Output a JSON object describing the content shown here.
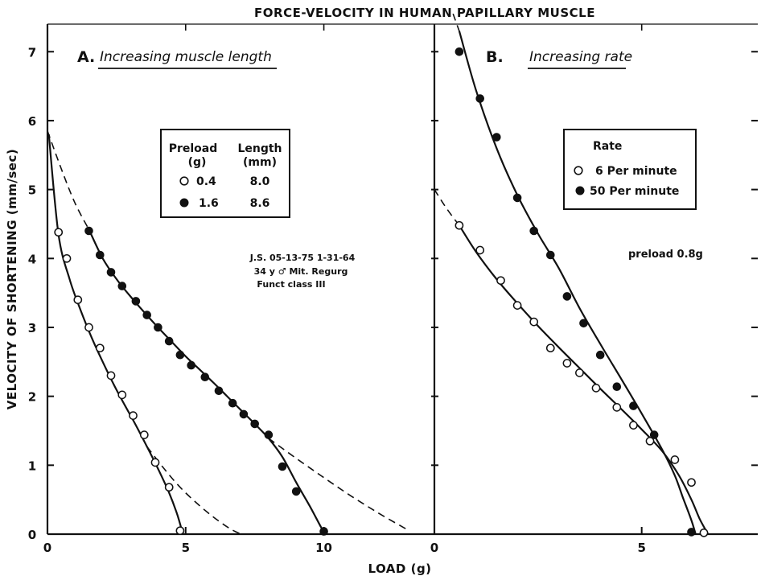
{
  "chart_data": [
    {
      "type": "scatter",
      "title": "FORCE-VELOCITY IN HUMAN PAPILLARY MUSCLE",
      "xlabel": "LOAD (g)",
      "ylabel": "VELOCITY OF SHORTENING (mm/sec)",
      "panel_label": "A.",
      "panel_title": "Increasing muscle length",
      "xlim": [
        0,
        14
      ],
      "ylim": [
        0,
        7.4
      ],
      "x_ticks": [
        "0",
        "5",
        "10"
      ],
      "y_ticks": [
        "0",
        "1",
        "2",
        "3",
        "4",
        "5",
        "6",
        "7"
      ],
      "grid": false,
      "legend": {
        "placement": "upper-center",
        "headers": [
          "Preload",
          "Length"
        ],
        "units": [
          "(g)",
          "(mm)"
        ],
        "rows": [
          {
            "marker": "open",
            "preload": "0.4",
            "length": "8.0"
          },
          {
            "marker": "filled",
            "preload": "1.6",
            "length": "8.6"
          }
        ]
      },
      "annotation": [
        "J.S. 05-13-75  1-31-64",
        "34 y ♂ Mit. Regurg",
        "Funct class III"
      ],
      "series": [
        {
          "marker": "open",
          "x": [
            0.4,
            0.7,
            1.1,
            1.5,
            1.9,
            2.3,
            2.7,
            3.1,
            3.5,
            3.9,
            4.4,
            4.8
          ],
          "y": [
            4.38,
            4.0,
            3.4,
            3.0,
            2.7,
            2.3,
            2.02,
            1.72,
            1.44,
            1.04,
            0.68,
            0.05
          ]
        },
        {
          "marker": "filled",
          "x": [
            1.5,
            1.9,
            2.3,
            2.7,
            3.2,
            3.6,
            4.0,
            4.4,
            4.8,
            5.2,
            5.7,
            6.2,
            6.7,
            7.1,
            7.5,
            8.0,
            8.5,
            9.0,
            10.0
          ],
          "y": [
            4.4,
            4.05,
            3.8,
            3.6,
            3.38,
            3.18,
            3.0,
            2.8,
            2.6,
            2.45,
            2.28,
            2.08,
            1.9,
            1.74,
            1.6,
            1.44,
            0.98,
            0.62,
            0.04
          ]
        }
      ],
      "fitted_curves": [
        {
          "style": "solid",
          "x": [
            0.05,
            0.4,
            0.8,
            1.2,
            1.6,
            2.0,
            2.4,
            2.8,
            3.2,
            3.6,
            4.0,
            4.4,
            4.7,
            4.9
          ],
          "y": [
            5.8,
            4.35,
            3.7,
            3.25,
            2.85,
            2.5,
            2.17,
            1.87,
            1.58,
            1.27,
            0.95,
            0.6,
            0.28,
            0.0
          ]
        },
        {
          "style": "dashed",
          "x": [
            3.6,
            4.2,
            4.8,
            5.4,
            6.0,
            6.6,
            7.0
          ],
          "y": [
            1.27,
            0.96,
            0.68,
            0.45,
            0.25,
            0.08,
            0.0
          ]
        },
        {
          "style": "dashed",
          "x": [
            0.0,
            0.5,
            1.0,
            1.5
          ],
          "y": [
            5.85,
            5.3,
            4.8,
            4.42
          ]
        },
        {
          "style": "solid",
          "x": [
            1.5,
            2.0,
            2.5,
            3.0,
            3.5,
            4.0,
            4.5,
            5.0,
            5.5,
            6.0,
            6.5,
            7.0,
            7.5,
            8.0,
            8.5,
            9.0,
            9.5,
            9.9,
            10.05
          ],
          "y": [
            4.42,
            4.0,
            3.7,
            3.45,
            3.22,
            3.0,
            2.79,
            2.58,
            2.39,
            2.2,
            2.0,
            1.8,
            1.6,
            1.39,
            1.12,
            0.75,
            0.4,
            0.1,
            0.0
          ]
        },
        {
          "style": "dashed",
          "x": [
            8.0,
            9.0,
            10.0,
            11.0,
            12.0,
            13.0
          ],
          "y": [
            1.39,
            1.1,
            0.82,
            0.55,
            0.3,
            0.07
          ]
        }
      ]
    },
    {
      "type": "scatter",
      "xlabel": "LOAD (g)",
      "panel_label": "B.",
      "panel_title": "Increasing rate",
      "xlim": [
        0,
        7.8
      ],
      "ylim": [
        0,
        7.4
      ],
      "x_ticks": [
        "0",
        "5"
      ],
      "grid": false,
      "legend": {
        "placement": "upper-right",
        "header": "Rate",
        "rows": [
          {
            "marker": "open",
            "label": "6 Per minute"
          },
          {
            "marker": "filled",
            "label": "50 Per minute"
          }
        ]
      },
      "annotation": [
        "preload 0.8g"
      ],
      "series": [
        {
          "name": "6 Per minute",
          "marker": "open",
          "x": [
            0.6,
            1.1,
            1.6,
            2.0,
            2.4,
            2.8,
            3.2,
            3.5,
            3.9,
            4.4,
            4.8,
            5.2,
            5.8,
            6.2,
            6.5
          ],
          "y": [
            4.48,
            4.12,
            3.68,
            3.32,
            3.08,
            2.7,
            2.48,
            2.34,
            2.12,
            1.84,
            1.58,
            1.35,
            1.08,
            0.75,
            0.02
          ]
        },
        {
          "name": "50 Per minute",
          "marker": "filled",
          "x": [
            0.6,
            1.1,
            1.5,
            2.0,
            2.4,
            2.8,
            3.2,
            3.6,
            4.0,
            4.4,
            4.8,
            5.3,
            6.2
          ],
          "y": [
            7.0,
            6.32,
            5.76,
            4.88,
            4.4,
            4.05,
            3.45,
            3.06,
            2.6,
            2.14,
            1.86,
            1.44,
            0.03
          ]
        }
      ],
      "fitted_curves": [
        {
          "style": "dashed",
          "x": [
            0.0,
            0.3,
            0.6
          ],
          "y": [
            5.0,
            4.72,
            4.48
          ]
        },
        {
          "style": "solid",
          "x": [
            0.6,
            1.0,
            1.5,
            2.0,
            2.5,
            3.0,
            3.5,
            4.0,
            4.5,
            5.0,
            5.5,
            5.9,
            6.2,
            6.4,
            6.6
          ],
          "y": [
            4.48,
            4.1,
            3.7,
            3.35,
            3.02,
            2.71,
            2.41,
            2.11,
            1.82,
            1.52,
            1.2,
            0.85,
            0.5,
            0.22,
            0.0
          ]
        },
        {
          "style": "dashed",
          "x": [
            0.45,
            0.6
          ],
          "y": [
            7.55,
            7.3
          ]
        },
        {
          "style": "solid",
          "x": [
            0.6,
            1.0,
            1.5,
            2.0,
            2.5,
            3.0,
            3.5,
            4.0,
            4.5,
            5.0,
            5.5,
            5.8,
            6.0,
            6.2,
            6.3
          ],
          "y": [
            7.3,
            6.45,
            5.6,
            4.92,
            4.36,
            3.86,
            3.28,
            2.76,
            2.26,
            1.75,
            1.22,
            0.85,
            0.52,
            0.2,
            0.0
          ]
        }
      ]
    }
  ]
}
